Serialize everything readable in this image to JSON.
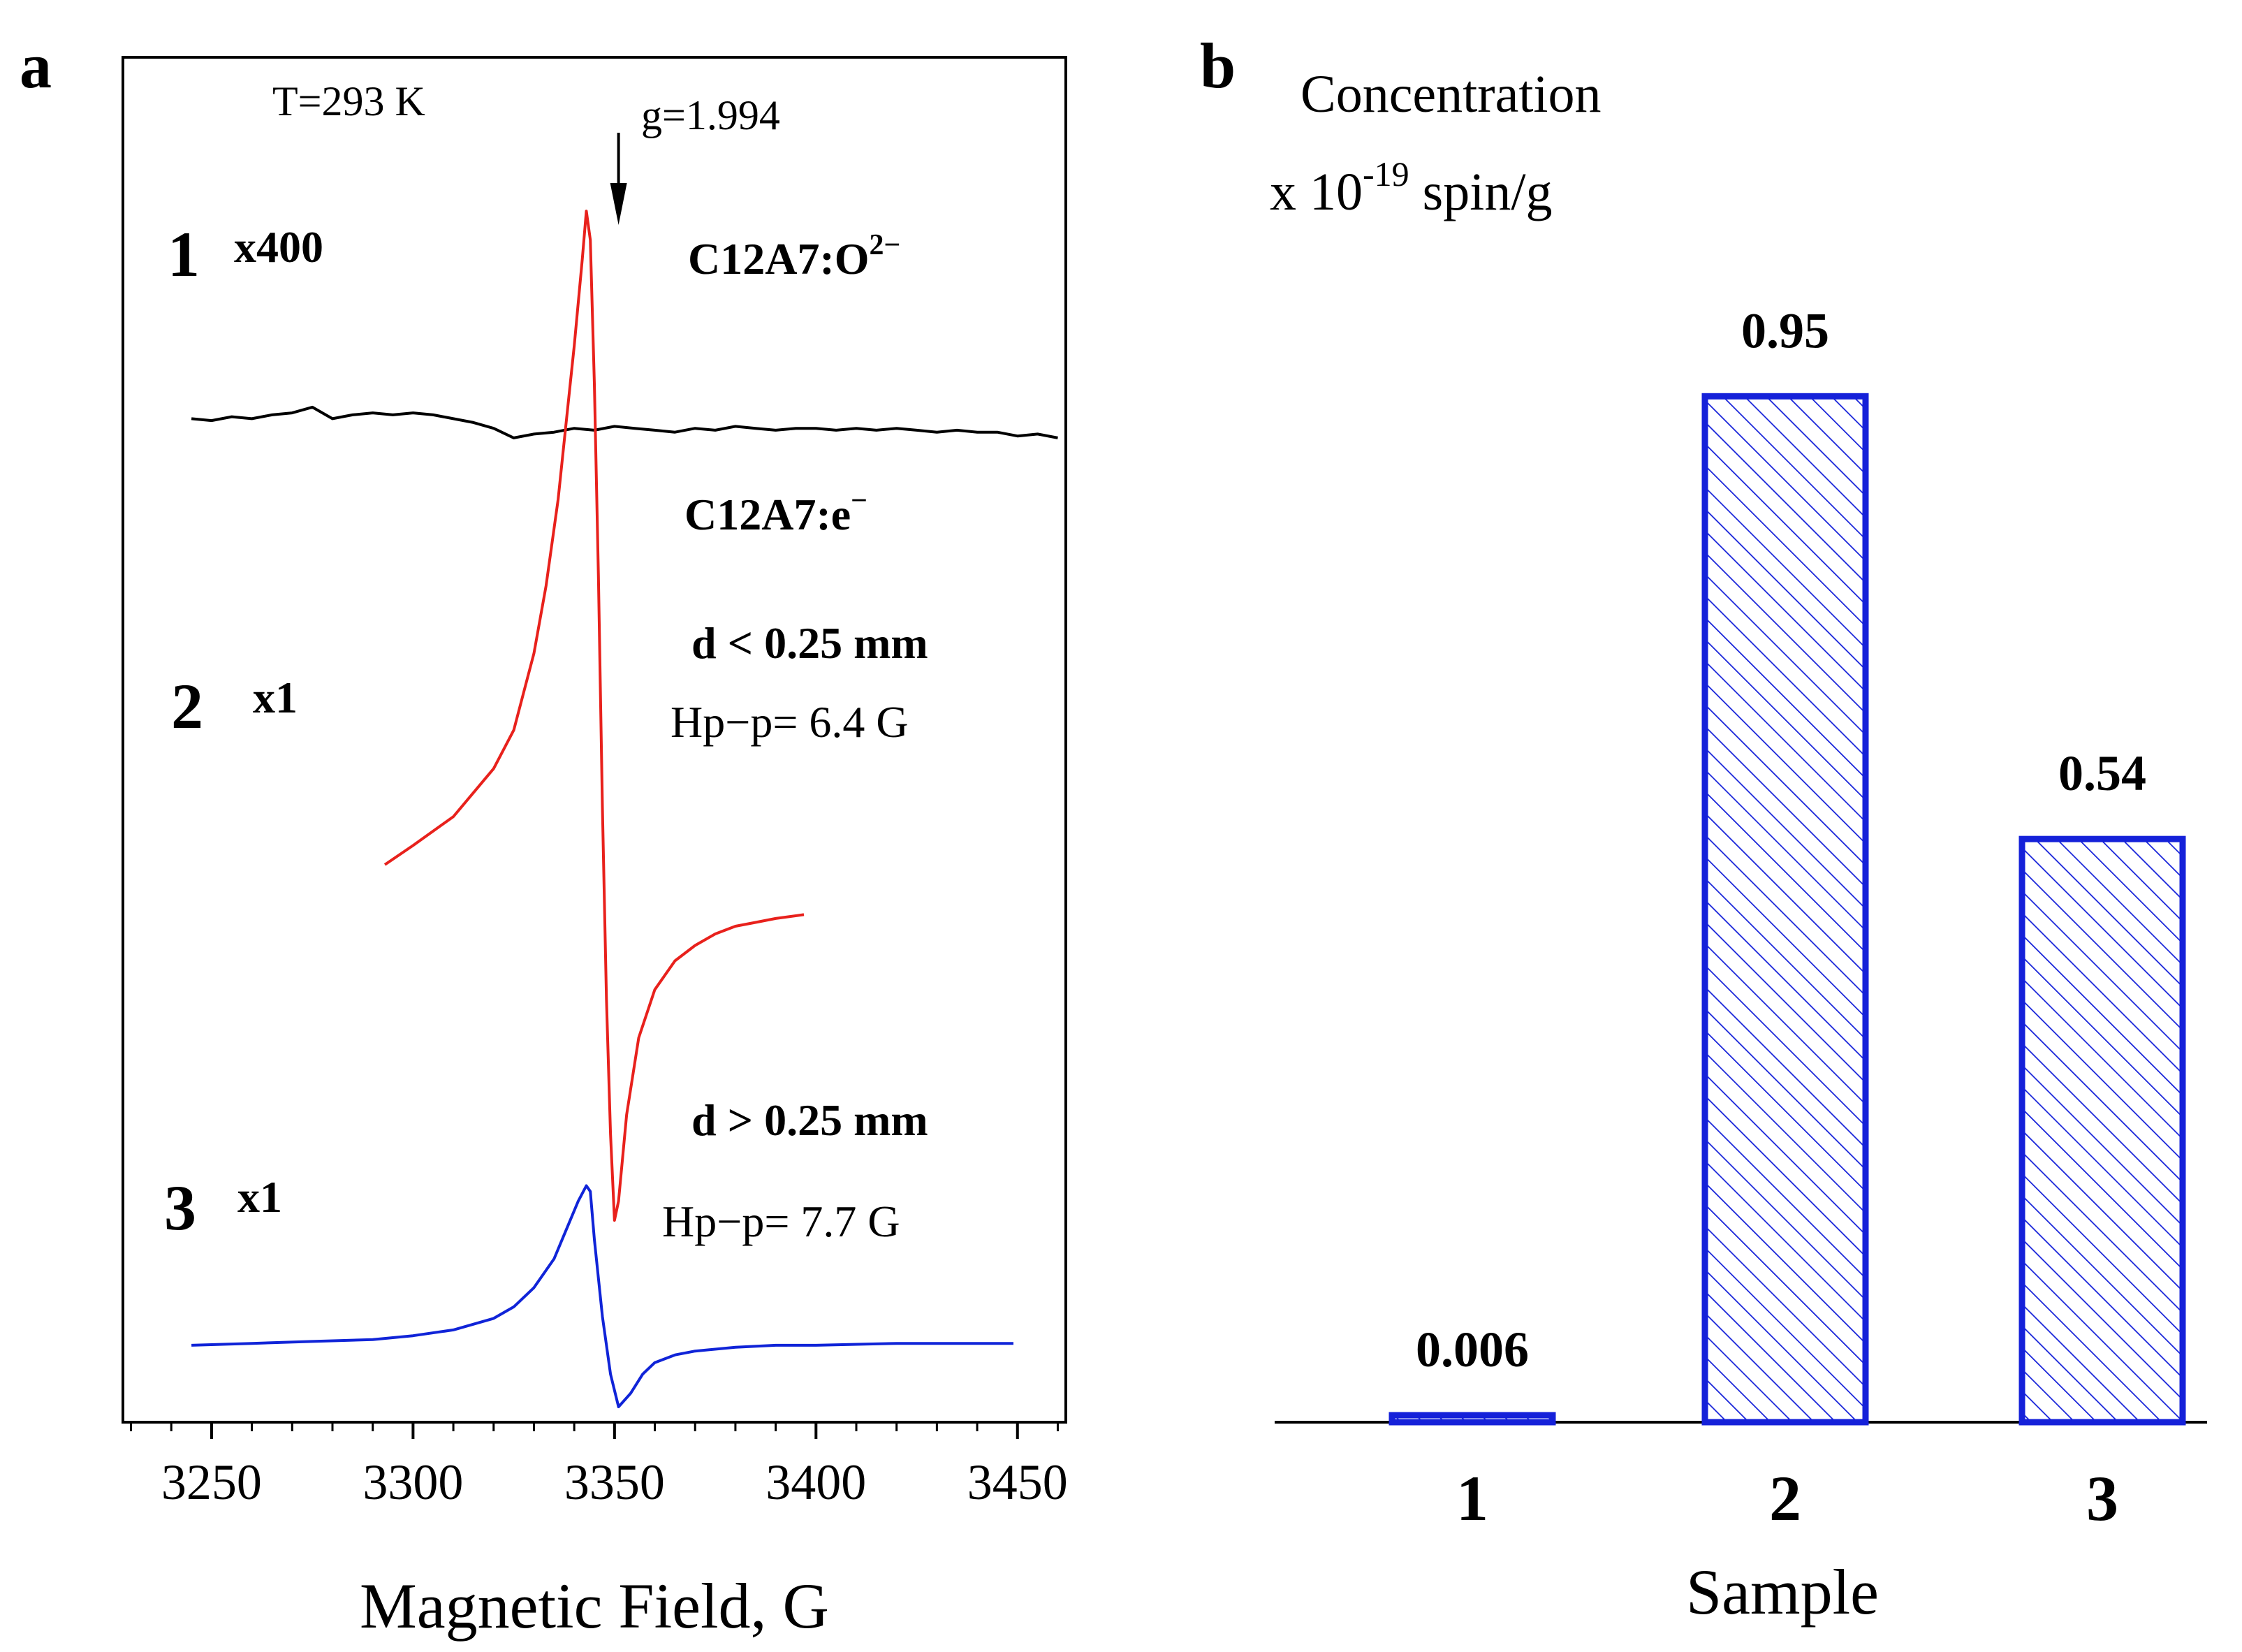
{
  "chart_data": [
    {
      "type": "line",
      "panel_label": "a",
      "xlabel": "Magnetic Field, G",
      "ylabel": "",
      "xlim": [
        3228,
        3462
      ],
      "ylim": [
        -5.2,
        1.9
      ],
      "x_ticks": [
        "3250",
        "3300",
        "3350",
        "3400",
        "3450"
      ],
      "x_tick_values": [
        3250,
        3300,
        3350,
        3400,
        3450
      ],
      "temperature_label": "T=293 K",
      "g_label": "g=1.994",
      "g_field": 3351,
      "series": [
        {
          "name": "1",
          "scale_label": "x400",
          "material": "C12A7:O2-",
          "material_text": "C12A7:O",
          "material_sup": "2−",
          "color": "#000000",
          "x": [
            3245,
            3250,
            3255,
            3260,
            3265,
            3270,
            3275,
            3280,
            3285,
            3290,
            3295,
            3300,
            3305,
            3310,
            3315,
            3320,
            3325,
            3330,
            3335,
            3340,
            3345,
            3350,
            3355,
            3360,
            3365,
            3370,
            3375,
            3380,
            3385,
            3390,
            3395,
            3400,
            3405,
            3410,
            3415,
            3420,
            3425,
            3430,
            3435,
            3440,
            3445,
            3450,
            3455,
            3460
          ],
          "y": [
            0.02,
            0.01,
            0.03,
            0.02,
            0.04,
            0.05,
            0.08,
            0.02,
            0.04,
            0.05,
            0.04,
            0.05,
            0.04,
            0.02,
            0.0,
            -0.03,
            -0.08,
            -0.06,
            -0.05,
            -0.03,
            -0.04,
            -0.02,
            -0.03,
            -0.04,
            -0.05,
            -0.03,
            -0.04,
            -0.02,
            -0.03,
            -0.04,
            -0.03,
            -0.03,
            -0.04,
            -0.03,
            -0.04,
            -0.03,
            -0.04,
            -0.05,
            -0.04,
            -0.05,
            -0.05,
            -0.07,
            -0.06,
            -0.08
          ]
        },
        {
          "name": "2",
          "scale_label": "x1",
          "material": "C12A7:e-",
          "material_text": "C12A7:e",
          "material_sup": "−",
          "size_label": "d < 0.25 mm",
          "width_label": "Hp−p= 6.4 G",
          "color": "#e8211c",
          "x": [
            3293,
            3300,
            3310,
            3320,
            3325,
            3330,
            3333,
            3336,
            3338,
            3340,
            3342,
            3343,
            3344,
            3345,
            3346,
            3347,
            3348,
            3349,
            3350,
            3351,
            3353,
            3356,
            3360,
            3365,
            3370,
            3375,
            3380,
            3385,
            3390,
            3397
          ],
          "y": [
            -2.3,
            -2.2,
            -2.05,
            -1.8,
            -1.6,
            -1.2,
            -0.85,
            -0.4,
            0.0,
            0.4,
            0.85,
            1.1,
            0.95,
            0.2,
            -0.8,
            -2.0,
            -3.0,
            -3.7,
            -4.15,
            -4.05,
            -3.6,
            -3.2,
            -2.95,
            -2.8,
            -2.72,
            -2.66,
            -2.62,
            -2.6,
            -2.58,
            -2.56
          ]
        },
        {
          "name": "3",
          "scale_label": "x1",
          "size_label": "d > 0.25 mm",
          "width_label": "Hp−p= 7.7 G",
          "color": "#1024d8",
          "x": [
            3245,
            3260,
            3275,
            3290,
            3300,
            3310,
            3320,
            3325,
            3330,
            3335,
            3338,
            3341,
            3343,
            3344,
            3345,
            3347,
            3349,
            3351,
            3354,
            3357,
            3360,
            3365,
            3370,
            3380,
            3390,
            3400,
            3420,
            3435,
            3449
          ],
          "y": [
            -4.8,
            -4.79,
            -4.78,
            -4.77,
            -4.75,
            -4.72,
            -4.66,
            -4.6,
            -4.5,
            -4.35,
            -4.2,
            -4.05,
            -3.97,
            -4.0,
            -4.25,
            -4.65,
            -4.95,
            -5.12,
            -5.05,
            -4.95,
            -4.89,
            -4.85,
            -4.83,
            -4.81,
            -4.8,
            -4.8,
            -4.79,
            -4.79,
            -4.79
          ]
        }
      ]
    },
    {
      "type": "bar",
      "panel_label": "b",
      "title_line1": "Concentration",
      "title_line2_pre": "x 10",
      "title_line2_sup": "-19",
      "title_line2_post": " spin/g",
      "xlabel": "Sample",
      "categories": [
        "1",
        "2",
        "3"
      ],
      "values": [
        0.006,
        0.95,
        0.54
      ],
      "value_labels": [
        "0.006",
        "0.95",
        "0.54"
      ],
      "ylim": [
        0,
        1.0
      ],
      "bar_color": "#1521d9",
      "hatch": "diagonal"
    }
  ]
}
